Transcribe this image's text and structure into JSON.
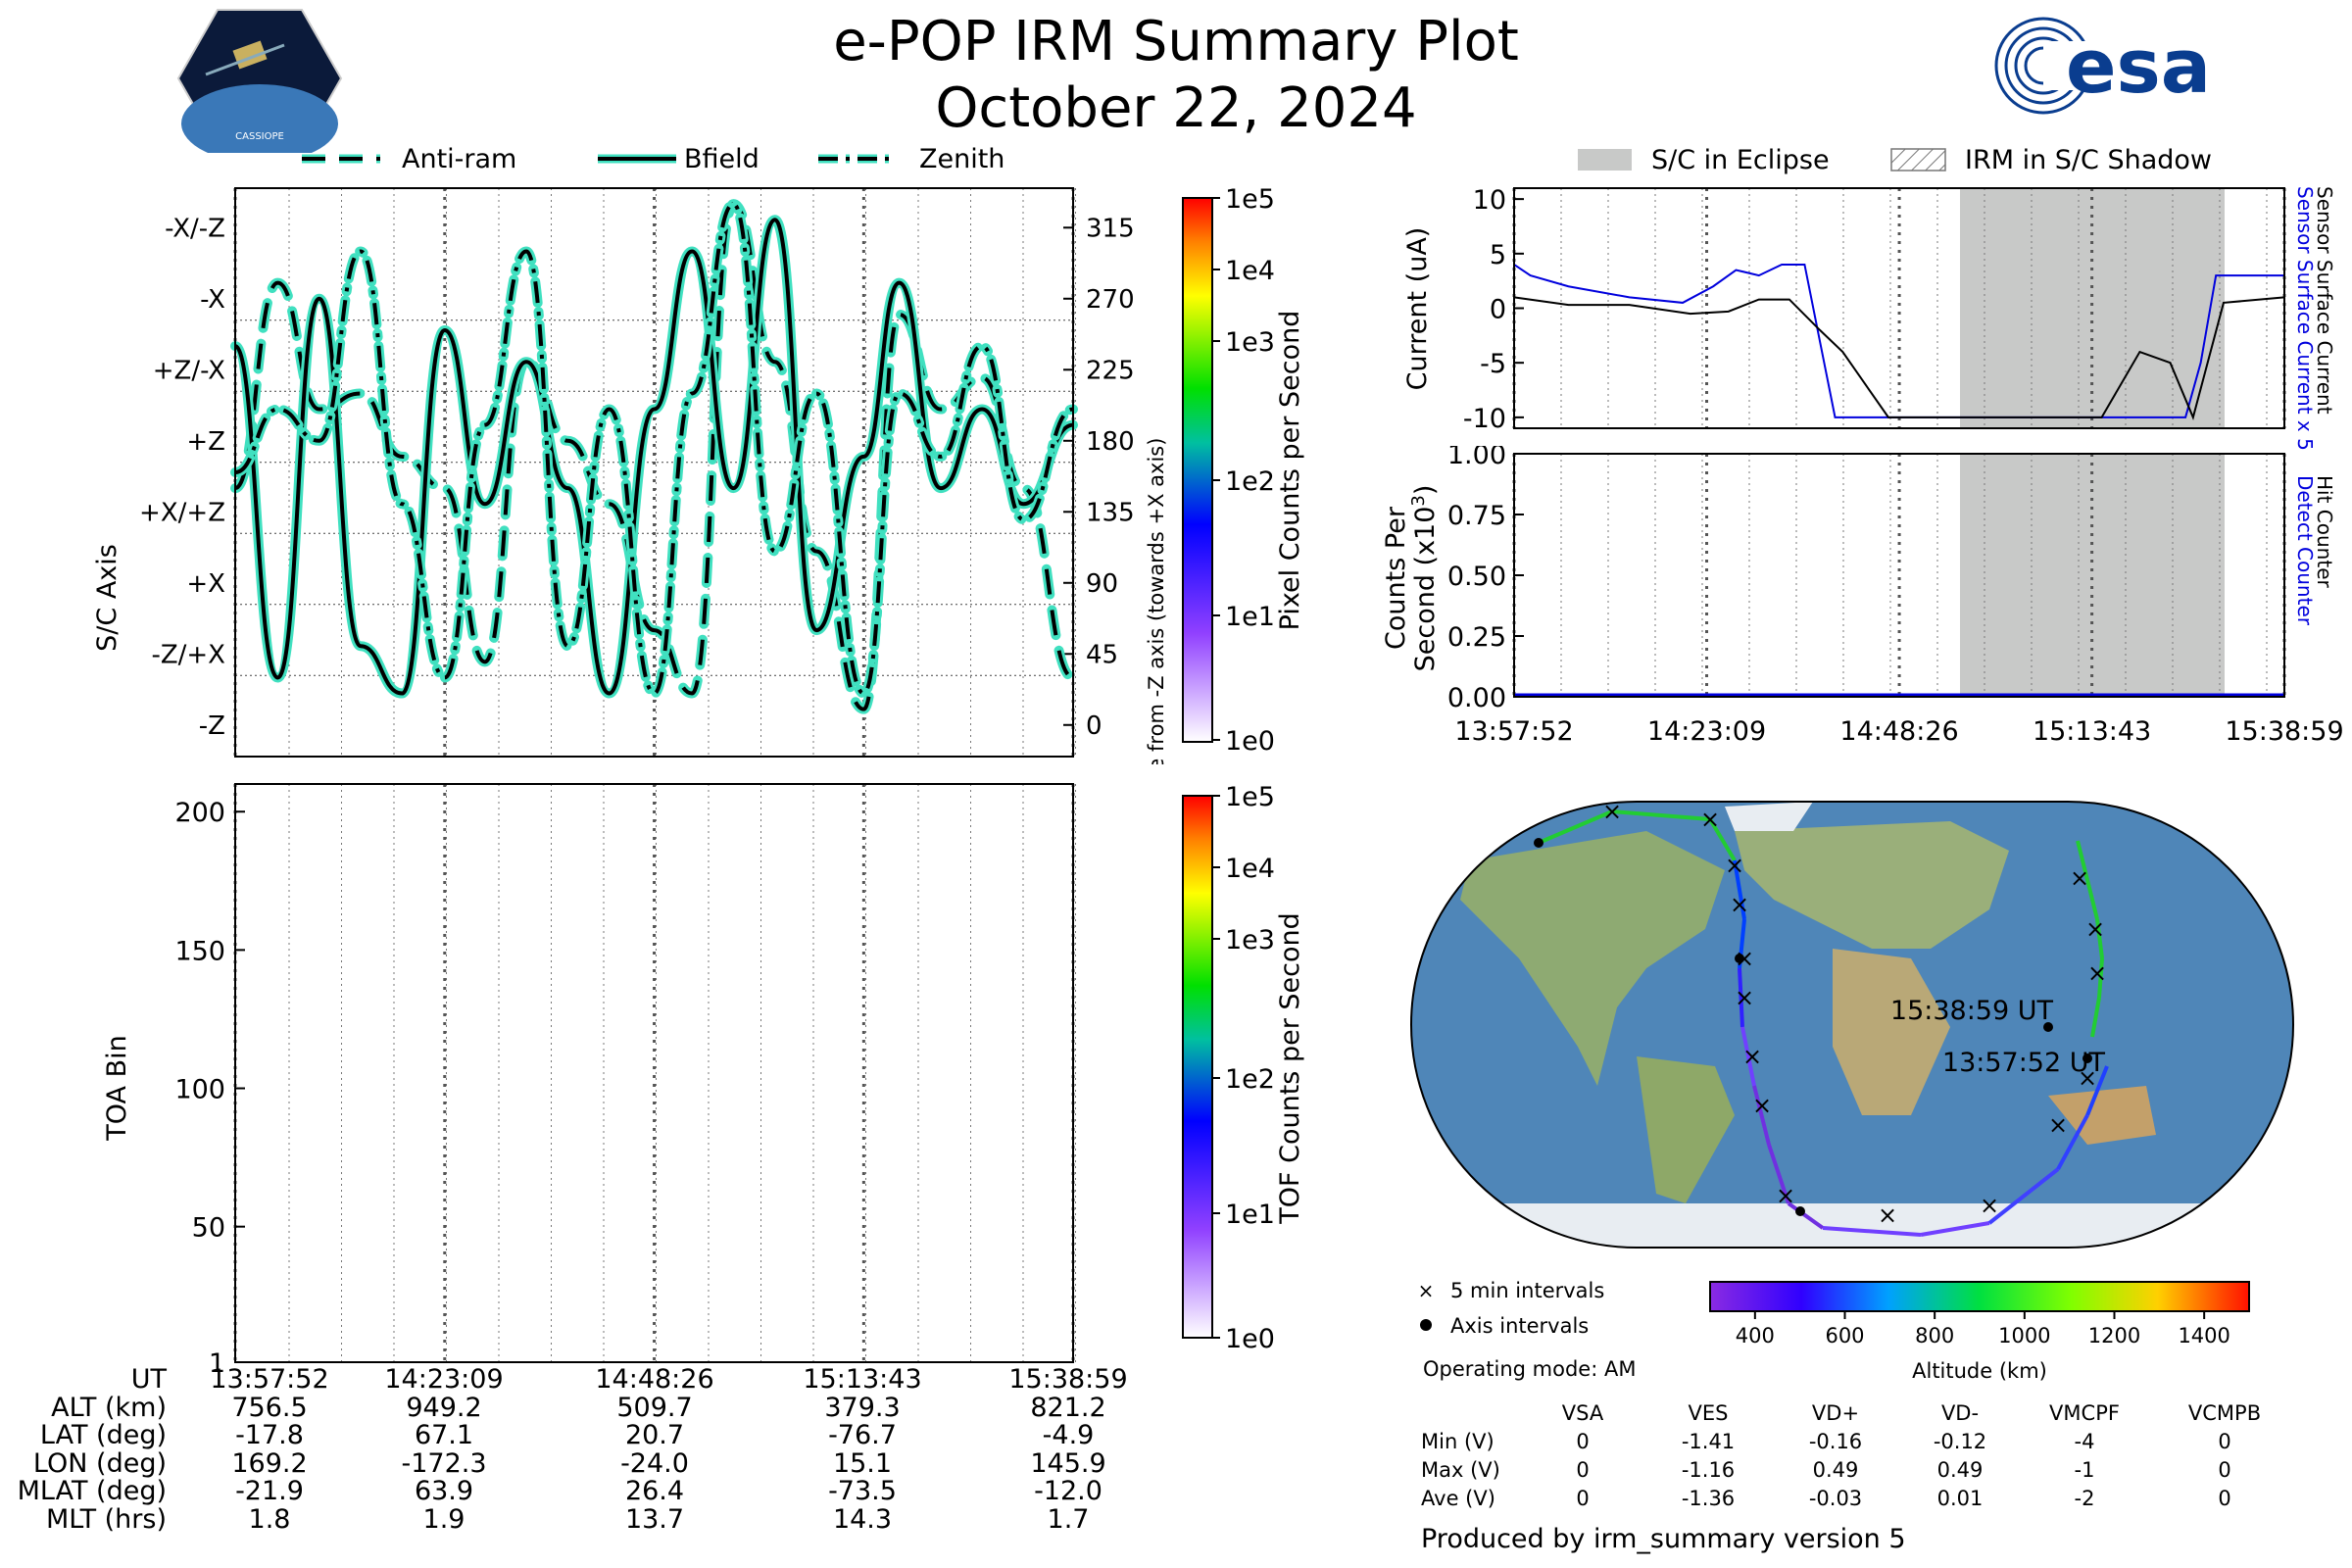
{
  "title": "e-POP IRM Summary Plot",
  "date": "October 22, 2024",
  "logos": {
    "cassiope": "CASSIOPE",
    "esa": "esa"
  },
  "legend_top_left": [
    {
      "label": "Anti-ram",
      "style": "dashed"
    },
    {
      "label": "Bfield",
      "style": "solid"
    },
    {
      "label": "Zenith",
      "style": "dashdot"
    }
  ],
  "legend_top_right": [
    {
      "label": "S/C in Eclipse"
    },
    {
      "label": "IRM in S/C Shadow"
    }
  ],
  "colors": {
    "line": "#000000",
    "halo": "#40e0c0",
    "eclipse": "#c8c9c8",
    "sensor": "#0000dd"
  },
  "time_ticks": [
    "13:57:52",
    "14:23:09",
    "14:48:26",
    "15:13:43",
    "15:38:59"
  ],
  "attitude_panel": {
    "ylabel": "S/C Axis",
    "axis_labels": [
      "-X/-Z",
      "-X",
      "+Z/-X",
      "+Z",
      "+X/+Z",
      "+X",
      "-Z/+X",
      "-Z"
    ],
    "angle_ticks": [
      "315",
      "270",
      "225",
      "180",
      "135",
      "90",
      "45",
      "0"
    ],
    "angle_label": "Angle from -Z axis (towards +X axis)",
    "colorbar_label": "Pixel Counts per Second",
    "colorbar_ticks": [
      "1e5",
      "1e4",
      "1e3",
      "1e2",
      "1e1",
      "1e0"
    ]
  },
  "toa_panel": {
    "ylabel": "TOA Bin",
    "yticks": [
      "200",
      "150",
      "100",
      "50",
      "1"
    ],
    "colorbar_label": "TOF Counts per Second",
    "colorbar_ticks": [
      "1e5",
      "1e4",
      "1e3",
      "1e2",
      "1e1",
      "1e0"
    ]
  },
  "current_panel": {
    "ylabel": "Current (uA)",
    "yticks": [
      "10",
      "5",
      "0",
      "-5",
      "-10"
    ],
    "right_label_blue": "Sensor Surface Current x 5",
    "right_label_black": "Sensor Surface Current"
  },
  "counts_panel": {
    "ylabel1": "Counts Per",
    "ylabel2": "Second (x10",
    "ylabel_exp": "3",
    "ylabel_close": ")",
    "yticks": [
      "1.00",
      "0.75",
      "0.50",
      "0.25",
      "0.00"
    ],
    "right_label_blue": "Detect Counter",
    "right_label_black": "Hit Counter"
  },
  "map": {
    "start_label": "13:57:52 UT",
    "end_label": "15:38:59 UT",
    "legend": [
      "5 min intervals",
      "Axis intervals"
    ],
    "operating_mode": "Operating mode: AM",
    "altitude_label": "Altitude (km)",
    "altitude_ticks": [
      "400",
      "600",
      "800",
      "1000",
      "1200",
      "1400"
    ]
  },
  "ephemeris": {
    "rows": [
      {
        "label": "UT",
        "values": [
          "13:57:52",
          "14:23:09",
          "14:48:26",
          "15:13:43",
          "15:38:59"
        ]
      },
      {
        "label": "ALT (km)",
        "values": [
          "756.5",
          "949.2",
          "509.7",
          "379.3",
          "821.2"
        ]
      },
      {
        "label": "LAT (deg)",
        "values": [
          "-17.8",
          "67.1",
          "20.7",
          "-76.7",
          "-4.9"
        ]
      },
      {
        "label": "LON (deg)",
        "values": [
          "169.2",
          "-172.3",
          "-24.0",
          "15.1",
          "145.9"
        ]
      },
      {
        "label": "MLAT (deg)",
        "values": [
          "-21.9",
          "63.9",
          "26.4",
          "-73.5",
          "-12.0"
        ]
      },
      {
        "label": "MLT (hrs)",
        "values": [
          "1.8",
          "1.9",
          "13.7",
          "14.3",
          "1.7"
        ]
      }
    ]
  },
  "voltages": {
    "headers": [
      "VSA",
      "VES",
      "VD+",
      "VD-",
      "VMCPF",
      "VCMPB"
    ],
    "rows": [
      {
        "label": "Min (V)",
        "values": [
          "0",
          "-1.41",
          "-0.16",
          "-0.12",
          "-4",
          "0"
        ]
      },
      {
        "label": "Max (V)",
        "values": [
          "0",
          "-1.16",
          "0.49",
          "0.49",
          "-1",
          "0"
        ]
      },
      {
        "label": "Ave (V)",
        "values": [
          "0",
          "-1.36",
          "-0.03",
          "0.01",
          "-2",
          "0"
        ]
      }
    ]
  },
  "footer": "Produced by irm_summary version 5",
  "chart_data": [
    {
      "type": "line",
      "title": "",
      "xlabel": "UT",
      "ylabel": "S/C Axis",
      "xlim": [
        "13:57:52",
        "15:38:59"
      ],
      "ylim": [
        -20,
        340
      ],
      "series": [
        {
          "name": "Anti-ram",
          "x": [
            "13:57:52",
            "14:03:00",
            "14:08:00",
            "14:13:00",
            "14:18:00",
            "14:23:09",
            "14:28:00",
            "14:33:00",
            "14:38:00",
            "14:43:00",
            "14:48:26",
            "14:53:00",
            "14:58:00",
            "15:03:00",
            "15:08:00",
            "15:13:43",
            "15:18:00",
            "15:23:00",
            "15:28:00",
            "15:33:00",
            "15:38:59"
          ],
          "values": [
            150,
            280,
            200,
            210,
            170,
            150,
            40,
            230,
            180,
            140,
            60,
            20,
            330,
            230,
            110,
            10,
            260,
            200,
            220,
            150,
            30
          ]
        },
        {
          "name": "Bfield",
          "x": [
            "13:57:52",
            "14:03:00",
            "14:08:00",
            "14:13:00",
            "14:18:00",
            "14:23:09",
            "14:28:00",
            "14:33:00",
            "14:38:00",
            "14:43:00",
            "14:48:26",
            "14:53:00",
            "14:58:00",
            "15:03:00",
            "15:08:00",
            "15:13:43",
            "15:18:00",
            "15:23:00",
            "15:28:00",
            "15:33:00",
            "15:38:59"
          ],
          "values": [
            240,
            30,
            270,
            50,
            20,
            250,
            140,
            230,
            150,
            20,
            200,
            300,
            150,
            320,
            60,
            170,
            280,
            150,
            200,
            140,
            190
          ]
        },
        {
          "name": "Zenith",
          "x": [
            "13:57:52",
            "14:03:00",
            "14:08:00",
            "14:13:00",
            "14:18:00",
            "14:23:09",
            "14:28:00",
            "14:33:00",
            "14:38:00",
            "14:43:00",
            "14:48:26",
            "14:53:00",
            "14:58:00",
            "15:03:00",
            "15:08:00",
            "15:13:43",
            "15:18:00",
            "15:23:00",
            "15:28:00",
            "15:33:00",
            "15:38:59"
          ],
          "values": [
            160,
            200,
            180,
            300,
            140,
            30,
            190,
            300,
            50,
            200,
            20,
            210,
            330,
            110,
            210,
            20,
            210,
            170,
            240,
            130,
            200
          ]
        }
      ]
    },
    {
      "type": "heatmap",
      "title": "",
      "xlabel": "UT",
      "ylabel": "TOA Bin",
      "ylim": [
        1,
        210
      ],
      "series": []
    },
    {
      "type": "line",
      "title": "",
      "ylabel": "Current (uA)",
      "xlim": [
        "13:57:52",
        "15:38:59"
      ],
      "ylim": [
        -11,
        11
      ],
      "series": [
        {
          "name": "Sensor Surface Current",
          "x": [
            "13:57:52",
            "14:05:00",
            "14:13:00",
            "14:21:00",
            "14:26:00",
            "14:30:00",
            "14:34:00",
            "14:38:00",
            "14:41:00",
            "14:43:00",
            "14:47:00",
            "15:00:00",
            "15:15:00",
            "15:20:00",
            "15:24:00",
            "15:27:00",
            "15:31:00",
            "15:38:59"
          ],
          "values": [
            1,
            0.3,
            0.3,
            -0.5,
            -0.3,
            0.8,
            0.8,
            -2,
            -4,
            -6,
            -10,
            -10,
            -10,
            -4,
            -5,
            -10,
            0.5,
            1
          ]
        },
        {
          "name": "Sensor Surface Current x 5",
          "x": [
            "13:57:52",
            "14:00:00",
            "14:05:00",
            "14:13:00",
            "14:20:00",
            "14:24:00",
            "14:27:00",
            "14:30:00",
            "14:33:00",
            "14:36:00",
            "14:40:00",
            "15:26:00",
            "15:28:00",
            "15:30:00",
            "15:33:00",
            "15:38:59"
          ],
          "values": [
            4,
            3,
            2,
            1,
            0.5,
            2,
            3.5,
            3,
            4,
            4,
            -10,
            -10,
            -5,
            3,
            3,
            3
          ]
        }
      ]
    },
    {
      "type": "line",
      "title": "",
      "ylabel": "Counts Per Second (x10^3)",
      "xlim": [
        "13:57:52",
        "15:38:59"
      ],
      "ylim": [
        0,
        1
      ],
      "series": [
        {
          "name": "Detect Counter",
          "x": [
            "13:57:52",
            "15:38:59"
          ],
          "values": [
            0,
            0
          ]
        },
        {
          "name": "Hit Counter",
          "x": [
            "13:57:52",
            "15:38:59"
          ],
          "values": [
            0,
            0
          ]
        }
      ]
    }
  ]
}
